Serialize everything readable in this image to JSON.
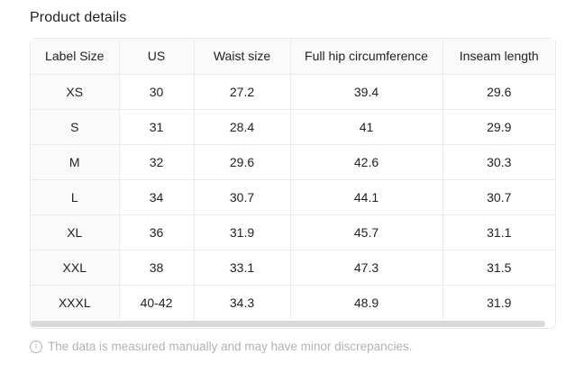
{
  "page": {
    "title": "Product details"
  },
  "table": {
    "columns": [
      "Label Size",
      "US",
      "Waist size",
      "Full hip circumference",
      "Inseam length"
    ],
    "rows": [
      [
        "XS",
        "30",
        "27.2",
        "39.4",
        "29.6"
      ],
      [
        "S",
        "31",
        "28.4",
        "41",
        "29.9"
      ],
      [
        "M",
        "32",
        "29.6",
        "42.6",
        "30.3"
      ],
      [
        "L",
        "34",
        "30.7",
        "44.1",
        "30.7"
      ],
      [
        "XL",
        "36",
        "31.9",
        "45.7",
        "31.1"
      ],
      [
        "XXL",
        "38",
        "33.1",
        "47.3",
        "31.5"
      ],
      [
        "XXXL",
        "40-42",
        "34.3",
        "48.9",
        "31.9"
      ]
    ]
  },
  "footer": {
    "info_icon_glyph": "i",
    "note": "The data is measured manually and may have minor discrepancies."
  },
  "colors": {
    "header_bg": "#fafafa",
    "label_column_bg": "#fafafa",
    "border": "#ebebeb",
    "text": "#222222",
    "muted_text": "#b3b3b3",
    "scrollbar_thumb": "#d9d9d9"
  }
}
